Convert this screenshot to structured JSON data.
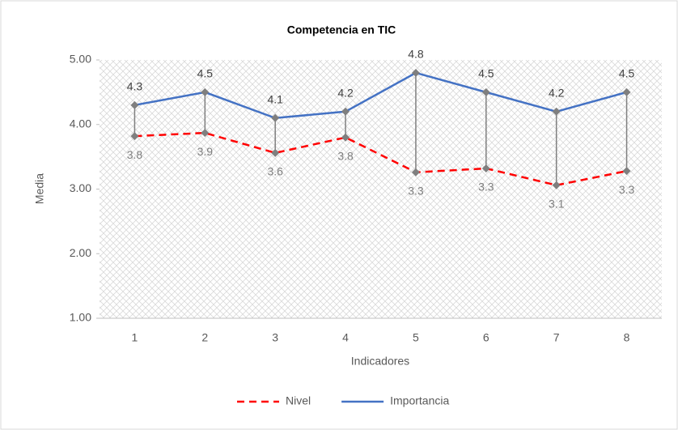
{
  "chart_data": {
    "type": "line",
    "title": "Competencia en TIC",
    "x_label": "Indicadores",
    "y_label": "Media",
    "categories": [
      "1",
      "2",
      "3",
      "4",
      "5",
      "6",
      "7",
      "8"
    ],
    "series": [
      {
        "name": "Nivel",
        "color": "#ff0000",
        "dash": true,
        "values": [
          3.82,
          3.87,
          3.56,
          3.8,
          3.26,
          3.32,
          3.06,
          3.28
        ],
        "value_labels": [
          "3.8",
          "3.9",
          "3.6",
          "3.8",
          "3.3",
          "3.3",
          "3.1",
          "3.3"
        ]
      },
      {
        "name": "Importancia",
        "color": "#4472c4",
        "dash": false,
        "values": [
          4.3,
          4.5,
          4.1,
          4.2,
          4.8,
          4.5,
          4.2,
          4.5
        ]
      }
    ],
    "marker_color": "#7f7f7f",
    "high_low_lines": true,
    "ylim": [
      1,
      5
    ],
    "yticks": [
      {
        "value": 1,
        "label": "1.00"
      },
      {
        "value": 2,
        "label": "2.00"
      },
      {
        "value": 3,
        "label": "3.00"
      },
      {
        "value": 4,
        "label": "4.00"
      },
      {
        "value": 5,
        "label": "5.00"
      }
    ],
    "legend": "bottom"
  }
}
